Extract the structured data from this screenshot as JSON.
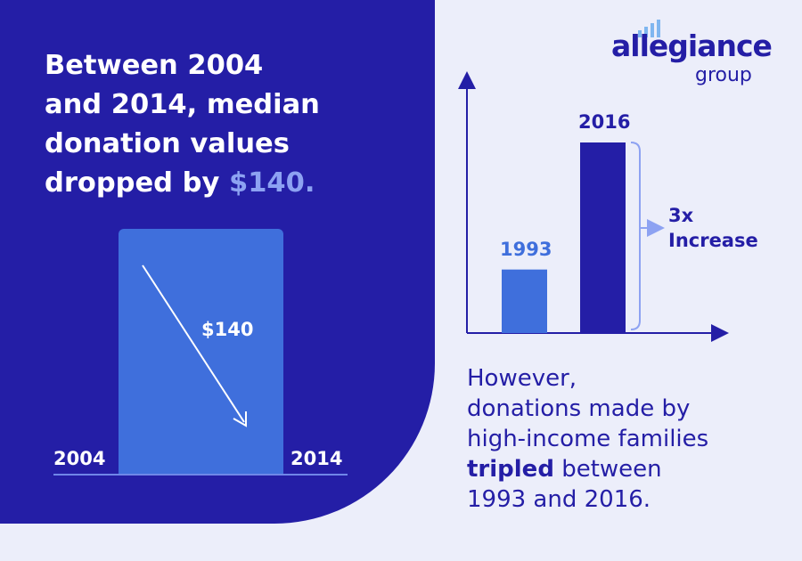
{
  "colors": {
    "panel": "#241EA6",
    "background": "#ECEEFA",
    "bar_light": "#3F6FDC",
    "bar_dark": "#241EA6",
    "accent_text": "#8DA2F2",
    "logo_bars": "#7FB6F0"
  },
  "headline": {
    "line1": "Between 2004",
    "line2": "and 2014, median",
    "line3": "donation values",
    "line4": "dropped by ",
    "accent": "$140."
  },
  "logo": {
    "word": "allegiance",
    "sub": "group",
    "icon": "signal-bars-icon"
  },
  "caption": {
    "line1": "However,",
    "line2": "donations made by",
    "line3": "high-income families",
    "bold": "tripled",
    "line4_rest": " between",
    "line5": "1993 and 2016."
  },
  "chart_data": [
    {
      "type": "bar",
      "categories": [
        "2004",
        "2014"
      ],
      "annotation": "$140",
      "annotation_direction": "down"
    },
    {
      "type": "bar",
      "categories": [
        "1993",
        "2016"
      ],
      "values": [
        1,
        3
      ],
      "annotation_line1": "3x",
      "annotation_line2": "Increase"
    }
  ]
}
